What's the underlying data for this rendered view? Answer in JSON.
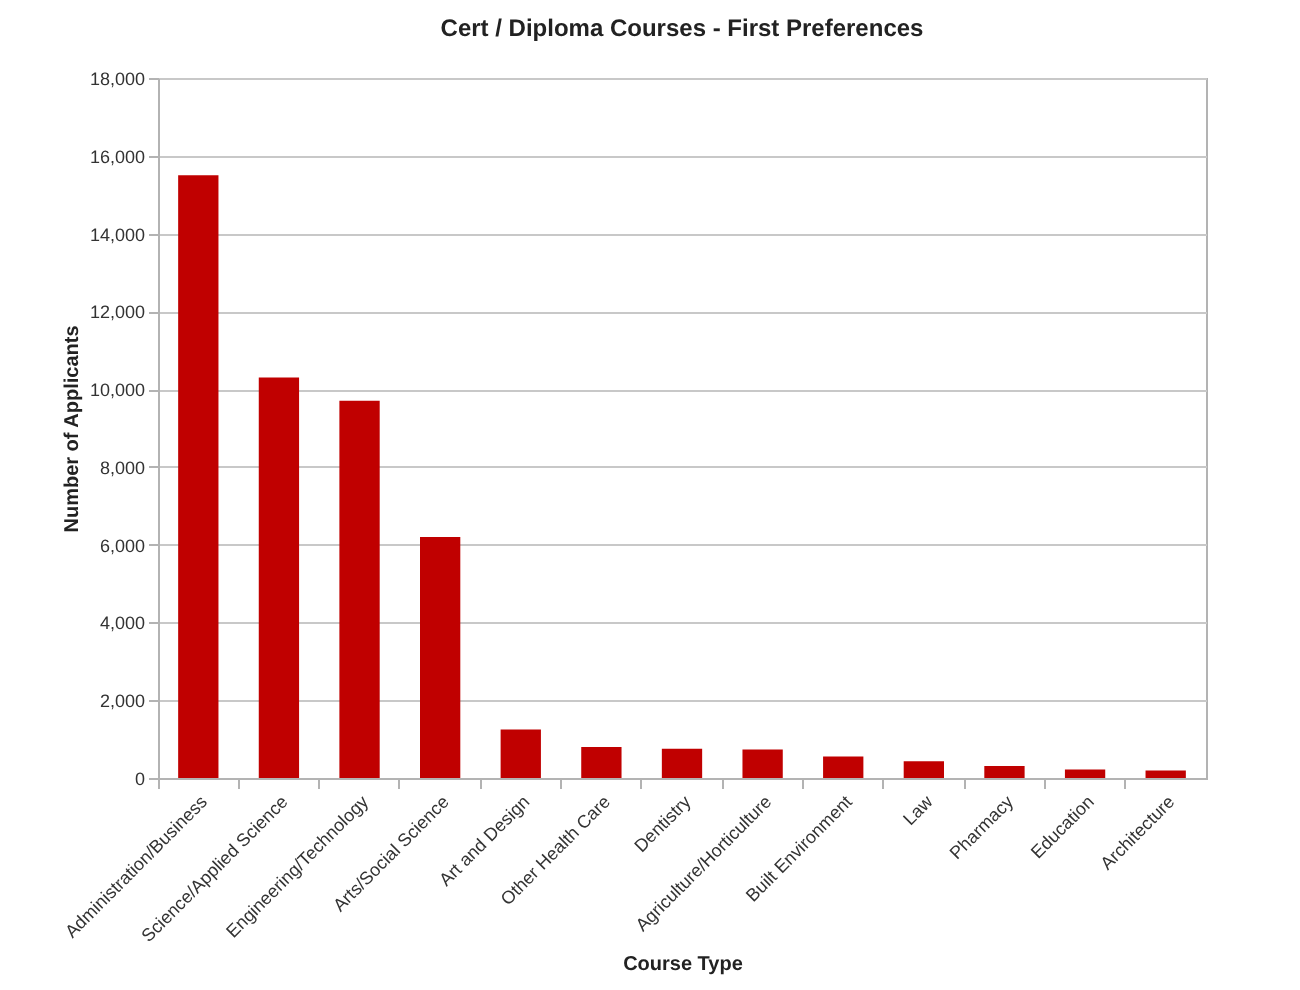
{
  "chart_data": {
    "type": "bar",
    "title": "Cert / Diploma Courses - First Preferences",
    "xlabel": "Course Type",
    "ylabel": "Number of Applicants",
    "categories": [
      "Administration/Business",
      "Science/Applied Science",
      "Engineering/Technology",
      "Arts/Social Science",
      "Art and Design",
      "Other Health Care",
      "Dentistry",
      "Agriculture/Horticulture",
      "Built Environment",
      "Law",
      "Pharmacy",
      "Education",
      "Architecture"
    ],
    "values": [
      15500,
      10300,
      9700,
      6200,
      1250,
      800,
      750,
      730,
      550,
      430,
      310,
      220,
      190
    ],
    "color": "#c00000",
    "ylim": [
      0,
      18000
    ],
    "yticks": [
      0,
      {
        "value": 2000,
        "label": "2,000"
      },
      {
        "value": 4000,
        "label": "4,000"
      },
      {
        "value": 6000,
        "label": "6,000"
      },
      {
        "value": 8000,
        "label": "8,000"
      },
      {
        "value": 10000,
        "label": "10,000"
      },
      {
        "value": 12000,
        "label": "12,000"
      },
      {
        "value": 14000,
        "label": "14,000"
      },
      {
        "value": 16000,
        "label": "16,000"
      },
      {
        "value": 18000,
        "label": "18,000"
      }
    ],
    "grid": "y"
  }
}
